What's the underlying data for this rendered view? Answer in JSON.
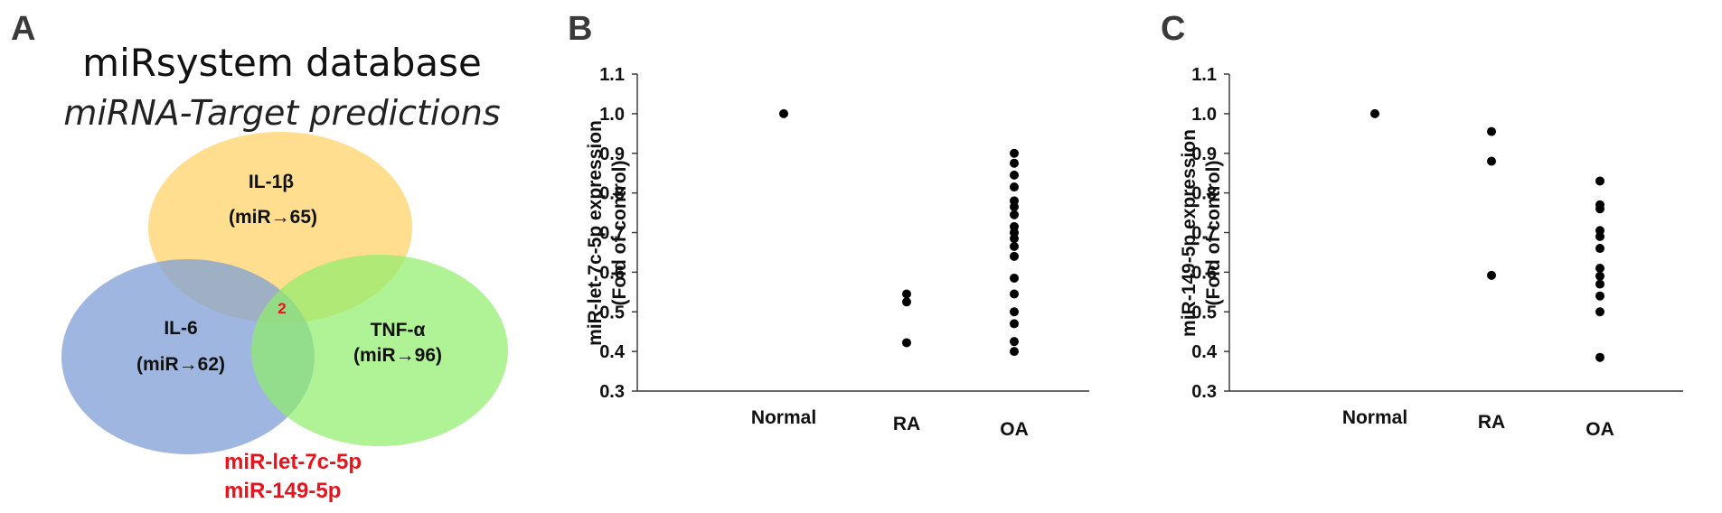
{
  "panel_a": {
    "letter": "A",
    "title": "miRsystem database",
    "subtitle": "miRNA-Target predictions",
    "sets": [
      {
        "name": "IL-1β",
        "count": "(miR→65)",
        "color": "#ffd36b"
      },
      {
        "name": "IL-6",
        "count": "(miR→62)",
        "color": "#7f9fd6"
      },
      {
        "name": "TNF-α",
        "count": "(miR→96)",
        "color": "#8fee6a"
      }
    ],
    "intersection_count": "2",
    "shared_mirnas": [
      "miR-let-7c-5p",
      "miR-149-5p"
    ]
  },
  "colors": {
    "accent_red": "#e8141b",
    "marker": "#000000"
  },
  "chart_data": [
    {
      "type": "scatter",
      "panel_letter": "B",
      "ylabel_line1": "miR-let-7c-5p expression",
      "ylabel_line2": "(Fold of control)",
      "categories": [
        "Normal",
        "RA",
        "OA"
      ],
      "ylim": [
        0.3,
        1.1
      ],
      "yticks": [
        "0.3",
        "0.4",
        "0.5",
        "0.6",
        "0.7",
        "0.8",
        "0.9",
        "1.0",
        "1.1"
      ],
      "grid": false,
      "series": [
        {
          "category": "Normal",
          "values": [
            1.0
          ]
        },
        {
          "category": "RA",
          "values": [
            0.545,
            0.525,
            0.422
          ]
        },
        {
          "category": "OA",
          "values": [
            0.9,
            0.875,
            0.845,
            0.815,
            0.78,
            0.765,
            0.745,
            0.715,
            0.7,
            0.685,
            0.665,
            0.64,
            0.585,
            0.545,
            0.5,
            0.47,
            0.425,
            0.4
          ]
        }
      ]
    },
    {
      "type": "scatter",
      "panel_letter": "C",
      "ylabel_line1": "miR-149-5p expression",
      "ylabel_line2": "(Fold of control)",
      "categories": [
        "Normal",
        "RA",
        "OA"
      ],
      "ylim": [
        0.3,
        1.1
      ],
      "yticks": [
        "0.3",
        "0.4",
        "0.5",
        "0.6",
        "0.7",
        "0.8",
        "0.9",
        "1.0",
        "1.1"
      ],
      "grid": false,
      "series": [
        {
          "category": "Normal",
          "values": [
            1.0
          ]
        },
        {
          "category": "RA",
          "values": [
            0.955,
            0.88,
            0.592
          ]
        },
        {
          "category": "OA",
          "values": [
            0.83,
            0.77,
            0.76,
            0.705,
            0.69,
            0.66,
            0.61,
            0.59,
            0.57,
            0.54,
            0.5,
            0.385
          ]
        }
      ]
    }
  ]
}
